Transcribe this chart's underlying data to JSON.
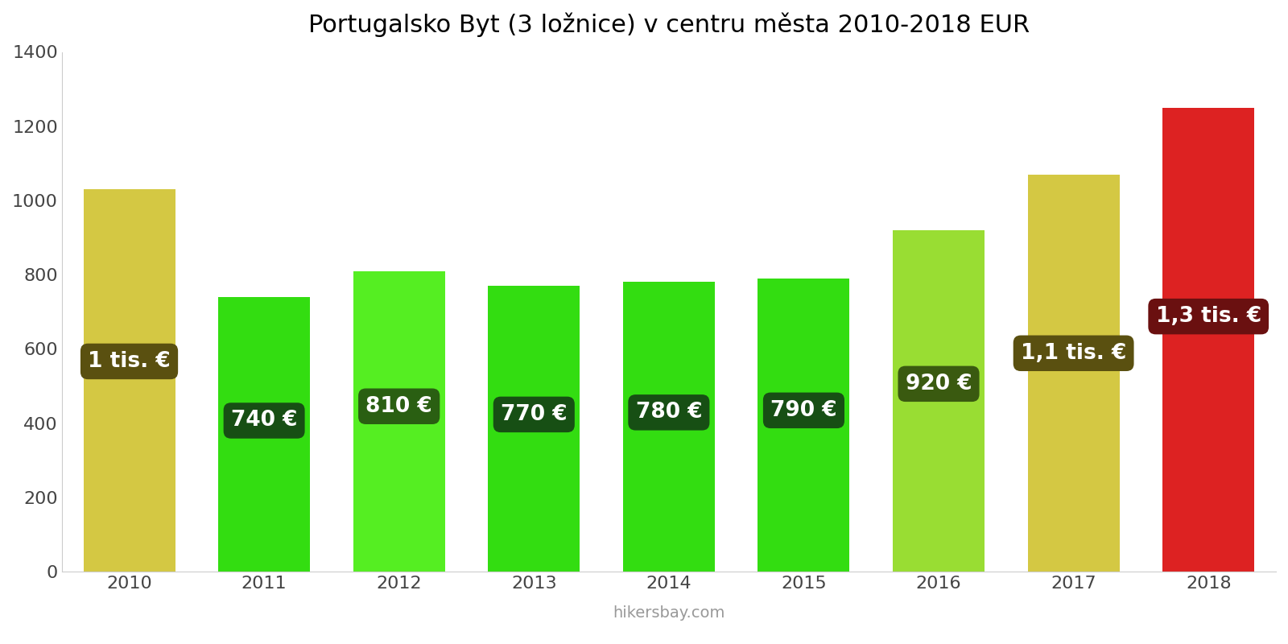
{
  "title": "Portugalsko Byt (3 ložnice) v centru města 2010-2018 EUR",
  "years": [
    2010,
    2011,
    2012,
    2013,
    2014,
    2015,
    2016,
    2017,
    2018
  ],
  "values": [
    1030,
    740,
    810,
    770,
    780,
    790,
    920,
    1070,
    1250
  ],
  "bar_colors": [
    "#d4c843",
    "#33dd11",
    "#55ee22",
    "#33dd11",
    "#33dd11",
    "#33dd11",
    "#99dd33",
    "#d4c843",
    "#dd2222"
  ],
  "labels": [
    "1 tis. €",
    "740 €",
    "810 €",
    "770 €",
    "780 €",
    "790 €",
    "920 €",
    "1,1 tis. €",
    "1,3 tis. €"
  ],
  "label_bg_colors": [
    "#5a5010",
    "#174f14",
    "#2a5f12",
    "#174f14",
    "#174f14",
    "#174f14",
    "#3a5a10",
    "#5a5010",
    "#6a1010"
  ],
  "ylim": [
    0,
    1400
  ],
  "yticks": [
    0,
    200,
    400,
    600,
    800,
    1000,
    1200,
    1400
  ],
  "watermark": "hikersbay.com",
  "title_fontsize": 22,
  "label_fontsize": 19,
  "tick_fontsize": 16,
  "bar_width": 0.68
}
